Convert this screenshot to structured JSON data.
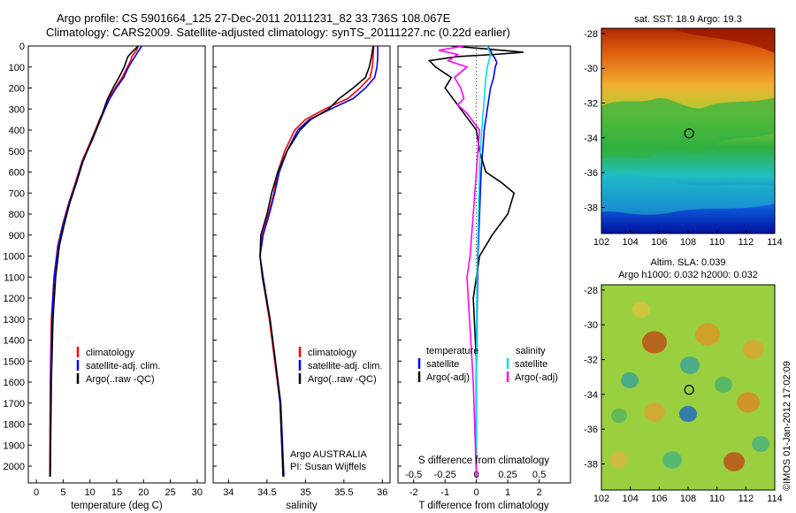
{
  "title": {
    "line1": "Argo profile: CS 5901664_125 27-Dec-2011 20111231_82 33.736S 108.067E",
    "line2": "Climatology: CARS2009. Satellite-adjusted climatology: synTS_20111227.nc (0.22d earlier)"
  },
  "colors": {
    "climatology": "#ff0000",
    "satellite": "#0000ff",
    "argo": "#000000",
    "sal_satellite": "#00e0e0",
    "sal_argo": "#ff00ff"
  },
  "depth_ticks": [
    "0",
    "100",
    "200",
    "300",
    "400",
    "500",
    "600",
    "700",
    "800",
    "900",
    "1000",
    "1100",
    "1200",
    "1300",
    "1400",
    "1500",
    "1600",
    "1700",
    "1800",
    "1900",
    "2000"
  ],
  "legend": {
    "climatology": "climatology",
    "satellite": "satellite-adj. clim.",
    "argo": "Argo(..raw -QC)"
  },
  "credit": {
    "line1": "Argo AUSTRALIA",
    "line2": "PI: Susan Wijffels"
  },
  "diff_legend": {
    "temp_header": "temperature",
    "sal_header": "salinity",
    "satellite": "satellite",
    "argo": "Argo(-adj)",
    "s_title": "S difference from climatology"
  },
  "chart_data": [
    {
      "type": "line",
      "xlabel": "temperature (deg C)",
      "ylabel": "",
      "xlim": [
        -1.5,
        31.5
      ],
      "ylim": [
        2080,
        0
      ],
      "xticks": [
        "0",
        "5",
        "10",
        "15",
        "20",
        "25",
        "30"
      ],
      "series": [
        {
          "name": "climatology",
          "x": [
            2.5,
            2.6,
            2.8,
            3.3,
            4.0,
            4.9,
            6.0,
            7.3,
            8.5,
            10.2,
            11.8,
            12.7,
            13.5,
            14.7,
            16.0,
            17.0,
            17.6,
            17.8,
            18.4,
            18.8,
            19.0
          ],
          "y": [
            2050,
            1600,
            1300,
            1100,
            950,
            850,
            750,
            650,
            550,
            450,
            350,
            300,
            250,
            200,
            150,
            100,
            70,
            50,
            30,
            15,
            0
          ]
        },
        {
          "name": "satellite-adj. clim.",
          "x": [
            2.6,
            2.7,
            2.9,
            3.3,
            4.1,
            5.0,
            6.1,
            7.4,
            8.6,
            10.4,
            12.0,
            12.8,
            13.7,
            14.9,
            16.3,
            17.2,
            17.9,
            18.4,
            18.9,
            19.3,
            19.6
          ],
          "y": [
            2050,
            1600,
            1300,
            1100,
            950,
            850,
            750,
            650,
            550,
            450,
            350,
            300,
            250,
            200,
            150,
            100,
            70,
            50,
            30,
            15,
            0
          ]
        },
        {
          "name": "Argo(..raw -QC)",
          "x": [
            2.6,
            2.8,
            3.1,
            3.6,
            4.3,
            5.2,
            6.2,
            7.5,
            8.7,
            10.3,
            11.9,
            12.6,
            13.3,
            14.3,
            15.4,
            16.4,
            16.8,
            17.1,
            17.8,
            18.4,
            19.0
          ],
          "y": [
            2050,
            1600,
            1300,
            1100,
            950,
            850,
            750,
            650,
            550,
            450,
            350,
            300,
            250,
            200,
            150,
            100,
            70,
            50,
            30,
            15,
            0
          ]
        }
      ]
    },
    {
      "type": "line",
      "xlabel": "salinity",
      "ylabel": "",
      "xlim": [
        33.8,
        36.1
      ],
      "ylim": [
        2080,
        0
      ],
      "xticks": [
        "34",
        "34.5",
        "35",
        "35.5",
        "36"
      ],
      "series": [
        {
          "name": "climatology",
          "x": [
            34.71,
            34.67,
            34.6,
            34.53,
            34.44,
            34.41,
            34.44,
            34.52,
            34.59,
            34.64,
            34.73,
            34.86,
            35.0,
            35.25,
            35.55,
            35.71,
            35.84,
            35.87,
            35.88,
            35.89
          ],
          "y": [
            2050,
            1700,
            1500,
            1300,
            1100,
            1000,
            900,
            800,
            700,
            600,
            500,
            400,
            350,
            300,
            250,
            200,
            150,
            100,
            50,
            0
          ]
        },
        {
          "name": "satellite-adj. clim.",
          "x": [
            34.72,
            34.68,
            34.61,
            34.54,
            34.45,
            34.41,
            34.45,
            34.53,
            34.6,
            34.66,
            34.76,
            34.9,
            35.05,
            35.33,
            35.62,
            35.78,
            35.9,
            35.93,
            35.94,
            35.94
          ],
          "y": [
            2050,
            1700,
            1500,
            1300,
            1100,
            1000,
            900,
            800,
            700,
            600,
            500,
            400,
            350,
            300,
            250,
            200,
            150,
            100,
            50,
            0
          ]
        },
        {
          "name": "Argo(..raw -QC)",
          "x": [
            34.71,
            34.67,
            34.61,
            34.54,
            34.44,
            34.41,
            34.42,
            34.5,
            34.56,
            34.64,
            34.76,
            34.93,
            35.07,
            35.3,
            35.44,
            35.62,
            35.78,
            35.83,
            35.86,
            35.88
          ],
          "y": [
            2050,
            1700,
            1500,
            1300,
            1100,
            1000,
            900,
            800,
            700,
            600,
            500,
            400,
            350,
            300,
            250,
            200,
            150,
            100,
            50,
            0
          ]
        }
      ]
    },
    {
      "type": "line",
      "xlabel": "T difference from climatology",
      "ylabel": "",
      "xlim": [
        -2.5,
        3.0
      ],
      "ylim": [
        2080,
        0
      ],
      "xticks": [
        "-2",
        "-1",
        "0",
        "1",
        "2"
      ],
      "s_ticks": [
        "-0.5",
        "-0.25",
        "0",
        "0.25",
        "0.5"
      ],
      "series": [
        {
          "name": "temperature satellite",
          "x": [
            0.0,
            0.0,
            0.02,
            0.05,
            0.1,
            0.15,
            0.25,
            0.35,
            0.45,
            0.55,
            0.6,
            0.65,
            0.6,
            0.5,
            0.45,
            0.35
          ],
          "y": [
            2050,
            1600,
            1300,
            1000,
            800,
            600,
            400,
            300,
            200,
            150,
            100,
            80,
            60,
            40,
            20,
            0
          ]
        },
        {
          "name": "temperature Argo(-adj)",
          "x": [
            0.0,
            0.0,
            -0.1,
            0.1,
            0.5,
            1.0,
            1.2,
            0.8,
            0.3,
            0.1,
            0.0,
            -0.5,
            -1.0,
            -0.8,
            -1.3,
            -1.5,
            -0.6,
            0.6,
            1.5,
            0.4,
            -0.8
          ],
          "y": [
            2050,
            1500,
            1200,
            1000,
            900,
            800,
            700,
            650,
            600,
            500,
            400,
            300,
            200,
            150,
            100,
            70,
            50,
            40,
            30,
            15,
            0
          ]
        },
        {
          "name": "salinity satellite",
          "x": [
            0.0,
            0.0,
            0.02,
            0.05,
            0.08,
            0.12,
            0.2,
            0.25,
            0.3,
            0.35,
            0.4,
            0.45,
            0.4,
            0.35
          ],
          "y": [
            2050,
            1500,
            1100,
            900,
            700,
            500,
            350,
            250,
            150,
            100,
            70,
            40,
            20,
            0
          ]
        },
        {
          "name": "salinity Argo(-adj)",
          "x": [
            0.0,
            -0.1,
            -0.3,
            -0.2,
            -0.1,
            0.0,
            0.1,
            -0.3,
            -0.6,
            -0.4,
            -0.5,
            -0.7,
            -0.3,
            -0.9,
            -0.6,
            -1.2,
            -0.4
          ],
          "y": [
            2050,
            1600,
            1100,
            1000,
            800,
            600,
            400,
            320,
            280,
            250,
            200,
            150,
            100,
            70,
            40,
            20,
            0
          ]
        }
      ]
    },
    {
      "type": "heatmap",
      "title": "sat. SST: 18.9 Argo: 19.3",
      "xlim": [
        102,
        114
      ],
      "ylim": [
        -39.5,
        -27.7
      ],
      "xticks": [
        "102",
        "104",
        "106",
        "108",
        "110",
        "112",
        "114"
      ],
      "yticks": [
        "-28",
        "-30",
        "-32",
        "-34",
        "-36",
        "-38"
      ],
      "argo_position": {
        "lon": 108.07,
        "lat": -33.74
      }
    },
    {
      "type": "heatmap",
      "title_line1": "Altim. SLA: 0.039",
      "title_line2": "Argo h1000: 0.032 h2000: 0.032",
      "xlim": [
        102,
        114
      ],
      "ylim": [
        -39.5,
        -27.7
      ],
      "xticks": [
        "102",
        "104",
        "106",
        "108",
        "110",
        "112",
        "114"
      ],
      "yticks": [
        "-28",
        "-30",
        "-32",
        "-34",
        "-36",
        "-38"
      ],
      "argo_position": {
        "lon": 108.07,
        "lat": -33.74
      },
      "side_label": "©IMOS 01-Jan-2012 17:02:09"
    }
  ]
}
